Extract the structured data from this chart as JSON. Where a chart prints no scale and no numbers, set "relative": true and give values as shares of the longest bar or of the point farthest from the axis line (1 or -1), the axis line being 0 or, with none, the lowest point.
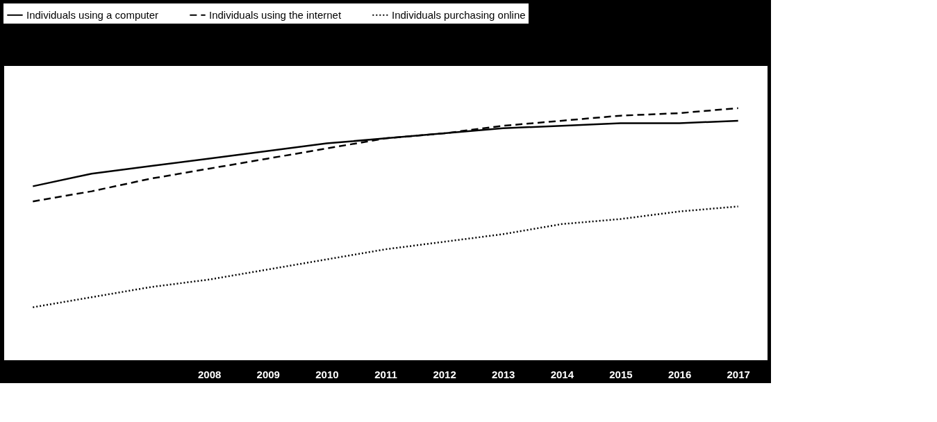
{
  "chart_data": {
    "type": "line",
    "relative": true,
    "legend": "top",
    "categories": [
      null,
      null,
      null,
      "2008",
      "2009",
      "2010",
      "2011",
      "2012",
      "2013",
      "2014",
      "2015",
      "2016",
      "2017"
    ],
    "series": [
      {
        "name": "Individuals using a computer",
        "color": "#000000",
        "line_style": "solid",
        "values": [
          0.69,
          0.74,
          0.77,
          0.8,
          0.83,
          0.86,
          0.88,
          0.9,
          0.92,
          0.93,
          0.94,
          0.94,
          0.95
        ]
      },
      {
        "name": "Individuals using the internet",
        "color": "#000000",
        "line_style": "dashed",
        "values": [
          0.63,
          0.67,
          0.72,
          0.76,
          0.8,
          0.84,
          0.88,
          0.9,
          0.93,
          0.95,
          0.97,
          0.98,
          1.0
        ]
      },
      {
        "name": "Individuals purchasing online",
        "color": "#000000",
        "line_style": "dotted",
        "values": [
          0.21,
          0.25,
          0.29,
          0.32,
          0.36,
          0.4,
          0.44,
          0.47,
          0.5,
          0.54,
          0.56,
          0.59,
          0.61
        ]
      }
    ]
  }
}
